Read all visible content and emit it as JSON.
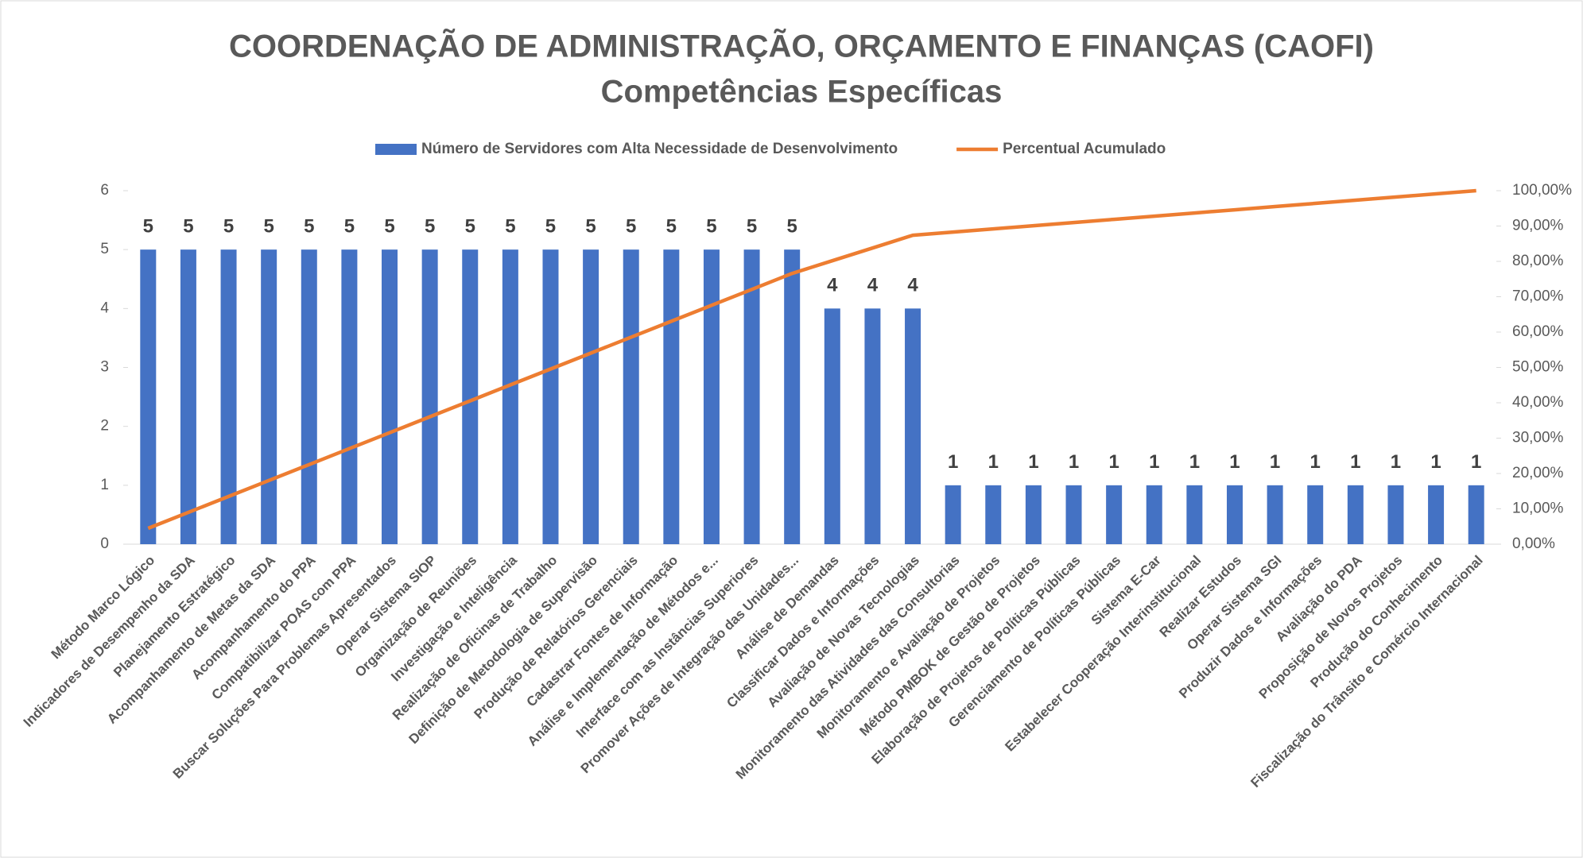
{
  "chart_data": {
    "type": "bar",
    "title": "COORDENAÇÃO DE ADMINISTRAÇÃO, ORÇAMENTO E FINANÇAS (CAOFI)",
    "subtitle": "Competências Específicas",
    "categories": [
      "Método Marco Lógico",
      "Indicadores de Desempenho da SDA",
      "Planejamento Estratégico",
      "Acompanhamento de Metas da SDA",
      "Acompanhamento do PPA",
      "Compatibilizar POAS com PPA",
      "Buscar Soluções Para Problemas Apresentados",
      "Operar Sistema SIOP",
      "Organização de Reuniões",
      "Investigação e Inteligência",
      "Realização de Oficinas de Trabalho",
      "Definição de Metodologia de Supervisão",
      "Produção de Relatórios Gerenciais",
      "Cadastrar Fontes de Informação",
      "Análise e Implementação de Métodos e...",
      "Interface com as Instâncias Superiores",
      "Promover Ações de Integração das Unidades...",
      "Análise de Demandas",
      "Classificar Dados e Informações",
      "Avaliação de Novas Tecnologias",
      "Monitoramento das Atividades das Consultorias",
      "Monitoramento e Avaliação de Projetos",
      "Método PMBOK de Gestão de Projetos",
      "Elaboração de Projetos de Políticas Públicas",
      "Gerenciamento de Políticas Públicas",
      "Sistema E-Car",
      "Estabelecer Cooperação Interinstitucional",
      "Realizar Estudos",
      "Operar Sistema SGI",
      "Produzir Dados e Informações",
      "Avaliação do PDA",
      "Proposição de Novos Projetos",
      "Produção do Conhecimento",
      "Fiscalização do Trânsito e Comércio Internacional"
    ],
    "series": [
      {
        "name": "Número de Servidores com Alta Necessidade de Desenvolvimento",
        "type": "bar",
        "color": "#4472c4",
        "values": [
          5,
          5,
          5,
          5,
          5,
          5,
          5,
          5,
          5,
          5,
          5,
          5,
          5,
          5,
          5,
          5,
          5,
          4,
          4,
          4,
          1,
          1,
          1,
          1,
          1,
          1,
          1,
          1,
          1,
          1,
          1,
          1,
          1,
          1
        ]
      },
      {
        "name": "Percentual Acumulado",
        "type": "line",
        "axis": "y2",
        "color": "#ed7d31",
        "values": [
          4.5,
          9.01,
          13.51,
          18.02,
          22.52,
          27.03,
          31.53,
          36.04,
          40.54,
          45.05,
          49.55,
          54.05,
          58.56,
          63.06,
          67.57,
          72.07,
          76.58,
          80.18,
          83.78,
          87.39,
          88.29,
          89.19,
          90.09,
          90.99,
          91.89,
          92.79,
          93.69,
          94.59,
          95.5,
          96.4,
          97.3,
          98.2,
          99.1,
          100
        ]
      }
    ],
    "ylim": [
      0,
      6
    ],
    "yticks": [
      0,
      1,
      2,
      3,
      4,
      5,
      6
    ],
    "y2lim": [
      0,
      100
    ],
    "y2ticks": [
      {
        "value": 0,
        "label": "0,00%"
      },
      {
        "value": 10,
        "label": "10,00%"
      },
      {
        "value": 20,
        "label": "20,00%"
      },
      {
        "value": 30,
        "label": "30,00%"
      },
      {
        "value": 40,
        "label": "40,00%"
      },
      {
        "value": 50,
        "label": "50,00%"
      },
      {
        "value": 60,
        "label": "60,00%"
      },
      {
        "value": 70,
        "label": "70,00%"
      },
      {
        "value": 80,
        "label": "80,00%"
      },
      {
        "value": 90,
        "label": "90,00%"
      },
      {
        "value": 100,
        "label": "100,00%"
      }
    ],
    "legend": "top",
    "grid": false
  }
}
